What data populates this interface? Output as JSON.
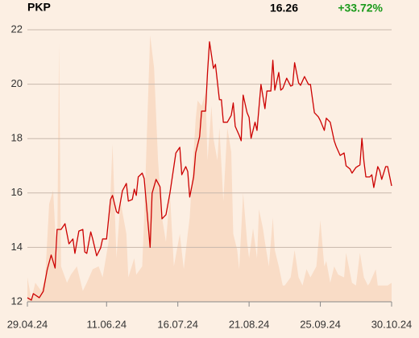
{
  "chart_data": {
    "type": "line",
    "title": "PKP",
    "last_price": "16.26",
    "change": "+33.72%",
    "change_color": "#1a9a1a",
    "background": "#fcefe3",
    "grid": true,
    "xlim": [
      0,
      184
    ],
    "xticks": [
      {
        "value": 0,
        "label": "29.04.24"
      },
      {
        "value": 40,
        "label": "11.06.24"
      },
      {
        "value": 76,
        "label": "16.07.24"
      },
      {
        "value": 112,
        "label": "21.08.24"
      },
      {
        "value": 148,
        "label": "25.09.24"
      },
      {
        "value": 184,
        "label": "30.10.24"
      }
    ],
    "ylim": [
      12,
      22
    ],
    "yticks": [
      12,
      14,
      16,
      18,
      20,
      22
    ],
    "y2lim": [
      0,
      100
    ],
    "series": [
      {
        "type": "area",
        "axis": "y2",
        "color": "#f9dcc6",
        "x": [
          0,
          2,
          4,
          7,
          9,
          11,
          13,
          15,
          16,
          17,
          20,
          22,
          25,
          28,
          30,
          33,
          36,
          38,
          41,
          43,
          45,
          47,
          50,
          51,
          54,
          55,
          58,
          59,
          62,
          64,
          66,
          68,
          70,
          72,
          74,
          77,
          79,
          81,
          82,
          85,
          86,
          88,
          90,
          91,
          93,
          94,
          96,
          97,
          99,
          101,
          103,
          104,
          106,
          107,
          109,
          111,
          112,
          114,
          116,
          117,
          119,
          120,
          122,
          124,
          125,
          127,
          129,
          130,
          133,
          135,
          137,
          139,
          141,
          143,
          146,
          148,
          150,
          151,
          153,
          155,
          157,
          160,
          161,
          164,
          166,
          168,
          170,
          172,
          173,
          176,
          177,
          180,
          182,
          184
        ],
        "values": [
          9,
          1,
          7,
          4,
          9,
          36,
          41,
          13,
          95,
          13,
          7,
          10,
          13,
          4,
          7,
          12,
          13,
          9,
          22,
          58,
          16,
          37,
          25,
          9,
          16,
          10,
          13,
          31,
          98,
          86,
          52,
          31,
          22,
          40,
          13,
          25,
          12,
          25,
          31,
          67,
          74,
          72,
          77,
          52,
          72,
          60,
          52,
          64,
          37,
          64,
          55,
          25,
          19,
          12,
          40,
          22,
          16,
          27,
          16,
          34,
          27,
          22,
          13,
          31,
          19,
          13,
          6,
          6,
          9,
          19,
          9,
          6,
          12,
          9,
          13,
          30,
          13,
          15,
          7,
          13,
          10,
          9,
          18,
          7,
          6,
          18,
          9,
          6,
          7,
          12,
          6,
          6,
          6,
          7
        ]
      },
      {
        "type": "line",
        "color": "#cc0000",
        "x": [
          0,
          2,
          3,
          6,
          8,
          10,
          12,
          14,
          15,
          17,
          19,
          21,
          23,
          24,
          26,
          28,
          29,
          30,
          32,
          33,
          35,
          37,
          38,
          40,
          42,
          43,
          45,
          46,
          48,
          50,
          51,
          53,
          54,
          55,
          56,
          58,
          59,
          62,
          63,
          65,
          67,
          68,
          70,
          72,
          75,
          77,
          78,
          80,
          81,
          82,
          84,
          85,
          87,
          88,
          90,
          91,
          92,
          94,
          95,
          97,
          98,
          99,
          101,
          103,
          104,
          105,
          107,
          108,
          109,
          111,
          112,
          113,
          115,
          116,
          118,
          120,
          121,
          123,
          124,
          125,
          127,
          128,
          129,
          131,
          133,
          134,
          135,
          137,
          138,
          140,
          142,
          143,
          145,
          147,
          148,
          150,
          151,
          153,
          155,
          156,
          158,
          160,
          161,
          163,
          164,
          166,
          168,
          169,
          170,
          171,
          173,
          174,
          175,
          177,
          178,
          179,
          181,
          182,
          184
        ],
        "values": [
          12.15,
          12.06,
          12.3,
          12.15,
          12.38,
          13.18,
          13.72,
          13.24,
          14.66,
          14.66,
          14.87,
          14.13,
          14.31,
          13.78,
          14.6,
          14.66,
          13.83,
          13.78,
          14.57,
          14.31,
          13.69,
          13.98,
          14.31,
          14.31,
          15.76,
          15.91,
          15.31,
          15.25,
          16.08,
          16.35,
          15.7,
          15.76,
          16.14,
          15.91,
          16.59,
          16.73,
          16.53,
          14.0,
          15.99,
          16.5,
          16.23,
          15.05,
          15.2,
          15.99,
          17.47,
          17.68,
          16.67,
          16.97,
          16.79,
          15.85,
          16.59,
          17.47,
          18.07,
          19.01,
          19.01,
          20.43,
          21.56,
          20.58,
          20.73,
          19.43,
          19.43,
          18.6,
          18.6,
          18.86,
          19.31,
          18.45,
          18.12,
          17.92,
          19.6,
          18.95,
          18.78,
          18.01,
          18.6,
          18.3,
          19.99,
          19.1,
          19.75,
          19.75,
          20.88,
          19.78,
          20.43,
          19.78,
          19.84,
          20.22,
          19.93,
          19.96,
          20.79,
          20.05,
          19.96,
          20.28,
          19.99,
          19.99,
          18.95,
          18.8,
          18.66,
          18.3,
          18.75,
          18.6,
          17.92,
          17.71,
          17.38,
          17.47,
          17.0,
          16.88,
          16.73,
          16.94,
          17.03,
          18.01,
          17.18,
          16.59,
          16.59,
          16.67,
          16.2,
          16.97,
          16.82,
          16.5,
          16.97,
          16.97,
          16.26
        ]
      }
    ]
  }
}
